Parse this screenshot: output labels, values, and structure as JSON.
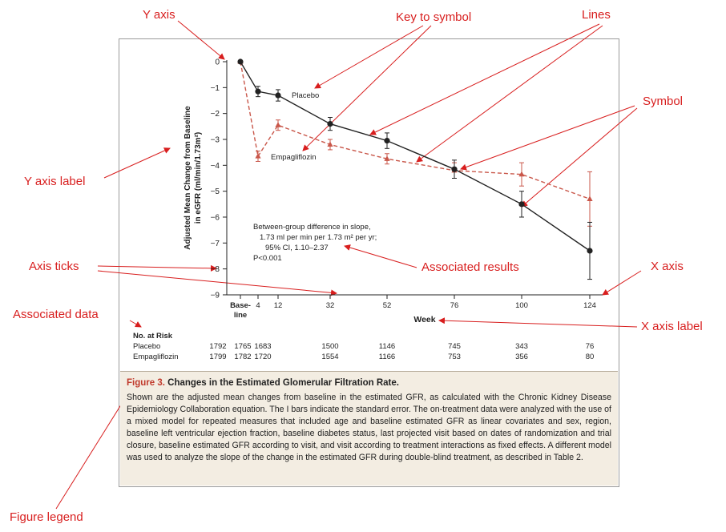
{
  "annotations": {
    "y_axis": "Y axis",
    "key_to_symbol": "Key to symbol",
    "lines": "Lines",
    "symbol": "Symbol",
    "y_axis_label": "Y axis label",
    "axis_ticks": "Axis ticks",
    "associated_results": "Associated results",
    "x_axis": "X axis",
    "associated_data": "Associated data",
    "x_axis_label": "X axis label",
    "figure_legend": "Figure legend"
  },
  "colors": {
    "annotation": "#d81e1e",
    "placebo": "#222222",
    "empagliflozin": "#c9574a",
    "legend_bg": "#f3ede2",
    "figure_number": "#c0392b"
  },
  "chart_data": {
    "type": "line",
    "ylabel_line1": "Adjusted Mean Change from Baseline",
    "ylabel_line2": "in eGFR (ml/min/1.73m²)",
    "xlabel": "Week",
    "ylim": [
      -9,
      0
    ],
    "yticks": [
      "0",
      "−1",
      "−2",
      "−3",
      "−4",
      "−5",
      "−6",
      "−7",
      "−8",
      "−9"
    ],
    "xticks": [
      "Base-",
      "4",
      "12",
      "32",
      "52",
      "76",
      "100",
      "124"
    ],
    "xtick_sub": "line",
    "x": [
      0,
      4,
      12,
      32,
      52,
      76,
      100,
      124
    ],
    "series": [
      {
        "name": "Placebo",
        "style": "solid",
        "values": [
          0,
          -1.15,
          -1.3,
          -2.4,
          -3.05,
          -4.15,
          -5.5,
          -7.3
        ],
        "errors": [
          0,
          0.2,
          0.22,
          0.25,
          0.3,
          0.35,
          0.5,
          1.1
        ]
      },
      {
        "name": "Empagliflozin",
        "style": "dashed",
        "values": [
          0,
          -3.65,
          -2.45,
          -3.2,
          -3.75,
          -4.2,
          -4.35,
          -5.3
        ],
        "errors": [
          0,
          0.2,
          0.2,
          0.2,
          0.2,
          0.3,
          0.45,
          1.05
        ]
      }
    ],
    "annotation_lines": [
      "Between-group difference in slope,",
      "1.73 ml per min per 1.73 m² per yr;",
      "95% CI, 1.10–2.37",
      "P<0.001"
    ],
    "risk_table": {
      "title": "No. at Risk",
      "rows": [
        {
          "label": "Placebo",
          "values": [
            "1792",
            "1765",
            "1683",
            "1500",
            "1146",
            "745",
            "343",
            "76"
          ]
        },
        {
          "label": "Empagliflozin",
          "values": [
            "1799",
            "1782",
            "1720",
            "1554",
            "1166",
            "753",
            "356",
            "80"
          ]
        }
      ]
    }
  },
  "legend": {
    "figure_number": "Figure 3.",
    "title": " Changes in the Estimated Glomerular Filtration Rate.",
    "text": "Shown are the adjusted mean changes from baseline in the estimated GFR, as calculated with the Chronic Kidney Disease Epidemiology Collaboration equation. The I bars indicate the standard error. The on-treatment data were analyzed with the use of a mixed model for repeated measures that included age and baseline estimated GFR as linear covariates and sex, region, baseline left ventricular ejection fraction, baseline diabetes status, last projected visit based on dates of randomization and trial closure, baseline estimated GFR according to visit, and visit according to treatment interactions as fixed effects. A different model was used to analyze the slope of the change in the estimated GFR during double-blind treatment, as described in Table 2."
  }
}
